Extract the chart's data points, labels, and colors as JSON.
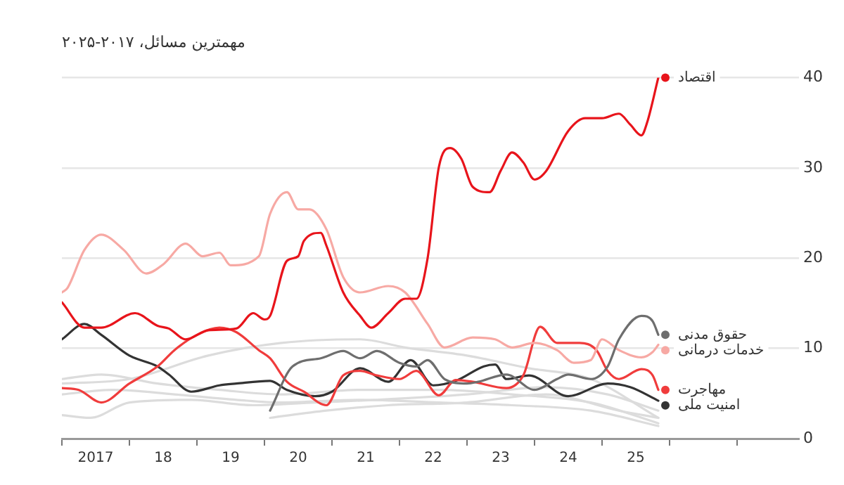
{
  "chart_data": {
    "type": "line",
    "title": "مهمترین مسائل، ۲۰۱۷-۲۰۲۵",
    "xlim": [
      "2017-01",
      "2027-12"
    ],
    "xticks": [
      {
        "value": "2017",
        "label": null
      },
      {
        "value": "2017-07",
        "label": "2017"
      },
      {
        "value": "2018",
        "label": null
      },
      {
        "value": "2018-07",
        "label": "18"
      },
      {
        "value": "2019",
        "label": null
      },
      {
        "value": "2019-07",
        "label": "19"
      },
      {
        "value": "2020",
        "label": null
      },
      {
        "value": "2020-07",
        "label": "20"
      },
      {
        "value": "2021",
        "label": null
      },
      {
        "value": "2021-07",
        "label": "21"
      },
      {
        "value": "2022",
        "label": null
      },
      {
        "value": "2022-07",
        "label": "22"
      },
      {
        "value": "2023",
        "label": null
      },
      {
        "value": "2023-07",
        "label": "23"
      },
      {
        "value": "2024",
        "label": null
      },
      {
        "value": "2024-07",
        "label": "24"
      },
      {
        "value": "2025",
        "label": null
      },
      {
        "value": "2025-07",
        "label": "25"
      },
      {
        "value": "2026",
        "label": null
      },
      {
        "value": "2027",
        "label": null
      }
    ],
    "ylim": [
      0,
      40
    ],
    "yticks": [
      0,
      10,
      20,
      30,
      40
    ],
    "grid": "y",
    "legend": "right",
    "marker": "none",
    "line_style": "solid",
    "series": [
      {
        "name": "اقتصاد",
        "color": "#e8141b",
        "x": [
          "2017-01",
          "2017-05",
          "2017-08",
          "2018-02",
          "2018-06",
          "2018-08",
          "2018-11",
          "2019-03",
          "2019-08",
          "2019-11",
          "2020-01",
          "2020-02",
          "2020-05",
          "2020-07",
          "2020-08",
          "2020-11",
          "2020-12",
          "2021-03",
          "2021-06",
          "2021-08",
          "2021-11",
          "2022-02",
          "2022-04",
          "2022-06",
          "2022-08",
          "2022-10",
          "2022-12",
          "2023-02",
          "2023-05",
          "2023-07",
          "2023-09",
          "2023-11",
          "2024-01",
          "2024-03",
          "2024-07",
          "2024-10",
          "2025-01",
          "2025-04",
          "2025-06",
          "2025-08",
          "2025-09",
          "2025-11"
        ],
        "values": [
          15.1,
          12.3,
          12.3,
          13.9,
          12.5,
          12.2,
          11,
          12,
          12.2,
          13.9,
          13.2,
          13.6,
          19.7,
          20.2,
          21.9,
          22.8,
          21.4,
          16.2,
          13.6,
          12.3,
          13.9,
          15.5,
          15.5,
          20,
          30.1,
          32.2,
          31,
          27.9,
          27.3,
          29.7,
          31.7,
          30.6,
          28.7,
          29.6,
          34.1,
          35.5,
          35.5,
          36,
          34.8,
          33.6,
          35,
          40
        ]
      },
      {
        "name": "حقوق مدنی",
        "color": "#6e6e6e",
        "x": [
          "2020-02",
          "2020-06",
          "2020-11",
          "2021-03",
          "2021-06",
          "2021-09",
          "2022-01",
          "2022-04",
          "2022-06",
          "2022-09",
          "2023-01",
          "2023-03",
          "2023-08",
          "2024-01",
          "2024-05",
          "2024-07",
          "2024-11",
          "2025-02",
          "2025-04",
          "2025-08",
          "2025-10",
          "2025-11"
        ],
        "values": [
          3.1,
          8,
          8.9,
          9.7,
          8.9,
          9.7,
          8.4,
          8,
          8.7,
          6.6,
          6.1,
          6.3,
          7.1,
          5.4,
          6.6,
          7.1,
          6.6,
          8,
          11,
          13.6,
          13,
          11.5
        ]
      },
      {
        "name": "خدمات درمانی",
        "color": "#f7a9a4",
        "x": [
          "2017-01",
          "2017-02",
          "2017-05",
          "2017-08",
          "2017-12",
          "2018-04",
          "2018-07",
          "2018-11",
          "2019-02",
          "2019-05",
          "2019-07",
          "2019-12",
          "2020-02",
          "2020-05",
          "2020-07",
          "2020-09",
          "2020-12",
          "2021-03",
          "2021-06",
          "2021-11",
          "2022-02",
          "2022-06",
          "2022-09",
          "2023-02",
          "2023-06",
          "2023-09",
          "2024-01",
          "2024-05",
          "2024-08",
          "2024-11",
          "2025-01",
          "2025-04",
          "2025-08",
          "2025-10",
          "2025-11"
        ],
        "values": [
          16.2,
          16.7,
          20.9,
          22.6,
          20.9,
          18.3,
          19.3,
          21.6,
          20.2,
          20.6,
          19.2,
          20.2,
          24.9,
          27.3,
          25.4,
          25.4,
          23.2,
          17.9,
          16.2,
          16.9,
          16.2,
          12.7,
          10.1,
          11.2,
          11,
          10.1,
          10.6,
          9.8,
          8.4,
          8.7,
          11,
          9.8,
          9,
          9.6,
          10.4
        ]
      },
      {
        "name": "مهاجرت",
        "color": "#f03c3c",
        "x": [
          "2017-01",
          "2017-04",
          "2017-08",
          "2018-01",
          "2018-06",
          "2018-09",
          "2019-01",
          "2019-05",
          "2019-08",
          "2019-12",
          "2020-02",
          "2020-05",
          "2020-08",
          "2020-12",
          "2021-03",
          "2021-06",
          "2021-09",
          "2022-01",
          "2022-04",
          "2022-08",
          "2022-11",
          "2023-02",
          "2023-08",
          "2023-11",
          "2024-02",
          "2024-05",
          "2024-09",
          "2024-12",
          "2025-02",
          "2025-04",
          "2025-08",
          "2025-10",
          "2025-11"
        ],
        "values": [
          5.6,
          5.4,
          4,
          6.1,
          8,
          9.8,
          11.5,
          12.3,
          11.8,
          9.8,
          8.9,
          6.3,
          5.2,
          3.7,
          7,
          7.5,
          7,
          6.6,
          7.5,
          4.8,
          6.5,
          6.3,
          5.6,
          7,
          12.4,
          10.6,
          10.6,
          9.8,
          7.5,
          6.6,
          7.7,
          7,
          5.4
        ]
      },
      {
        "name": "امنیت ملی",
        "color": "#333333",
        "x": [
          "2017-01",
          "2017-05",
          "2017-08",
          "2018-01",
          "2018-06",
          "2018-08",
          "2018-12",
          "2019-05",
          "2019-08",
          "2020-02",
          "2020-05",
          "2020-10",
          "2021-01",
          "2021-06",
          "2021-11",
          "2022-03",
          "2022-07",
          "2022-11",
          "2023-04",
          "2023-06",
          "2023-08",
          "2023-12",
          "2024-07",
          "2025-02",
          "2025-06",
          "2025-11"
        ],
        "values": [
          11,
          12.7,
          11.5,
          9.2,
          8,
          7.1,
          5.2,
          5.9,
          6.1,
          6.4,
          5.4,
          4.7,
          5.2,
          7.8,
          6.3,
          8.7,
          5.9,
          6.4,
          8,
          8.2,
          6.6,
          7,
          4.7,
          6.1,
          5.7,
          4.2
        ]
      },
      {
        "color": "#dcdcdc",
        "x": [
          "2017-01",
          "2018-01",
          "2019-03",
          "2020-04",
          "2021-06",
          "2022-02",
          "2023-01",
          "2023-12",
          "2024-11",
          "2025-11"
        ],
        "values": [
          6.1,
          6.6,
          9.2,
          10.6,
          11,
          10.1,
          9.2,
          7.8,
          6.6,
          2.3
        ]
      },
      {
        "color": "#dcdcdc",
        "x": [
          "2017-01",
          "2017-08",
          "2018-06",
          "2019-05",
          "2020-04",
          "2021-06",
          "2022-08",
          "2023-09",
          "2024-11",
          "2025-11"
        ],
        "values": [
          6.6,
          7.1,
          6.1,
          5.4,
          4.9,
          5.4,
          5.4,
          4.9,
          4,
          1.7
        ]
      },
      {
        "color": "#dcdcdc",
        "x": [
          "2017-01",
          "2017-10",
          "2018-09",
          "2019-08",
          "2020-04",
          "2021-06",
          "2022-08",
          "2023-09",
          "2024-11",
          "2025-11"
        ],
        "values": [
          4.9,
          5.4,
          4.9,
          4.3,
          4,
          4.3,
          4,
          3.7,
          3.1,
          1.4
        ]
      },
      {
        "color": "#dcdcdc",
        "x": [
          "2017-01",
          "2017-06",
          "2018-01",
          "2018-12",
          "2019-11",
          "2020-10",
          "2021-09",
          "2023-01",
          "2024-03",
          "2025-02",
          "2025-11"
        ],
        "values": [
          2.6,
          2.3,
          4,
          4.3,
          3.7,
          4,
          4.3,
          4.9,
          5.7,
          4.9,
          3.1
        ]
      },
      {
        "color": "#dcdcdc",
        "x": [
          "2020-02",
          "2020-12",
          "2021-11",
          "2023-01",
          "2024-03",
          "2025-04",
          "2025-11"
        ],
        "values": [
          2.3,
          3.1,
          3.7,
          4,
          4.9,
          3.1,
          2.3
        ]
      }
    ]
  }
}
